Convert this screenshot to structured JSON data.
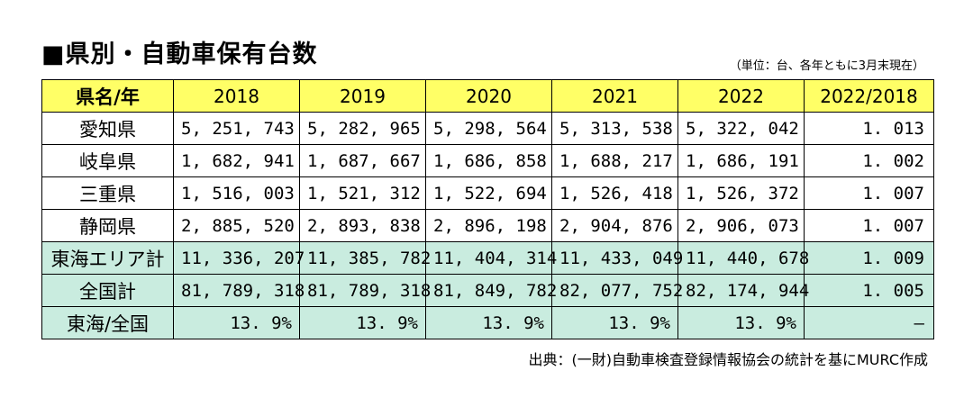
{
  "title": "■県別・自動車保有台数",
  "unit_note": "（単位：台、各年ともに3月末現在）",
  "table": {
    "columns": [
      "県名/年",
      "2018",
      "2019",
      "2020",
      "2021",
      "2022",
      "2022/2018"
    ],
    "rows": [
      {
        "name": "愛知県",
        "values": [
          "5, 251, 743",
          "5, 282, 965",
          "5, 298, 564",
          "5, 313, 538",
          "5, 322, 042"
        ],
        "ratio": "1. 013"
      },
      {
        "name": "岐阜県",
        "values": [
          "1, 682, 941",
          "1, 687, 667",
          "1, 686, 858",
          "1, 688, 217",
          "1, 686, 191"
        ],
        "ratio": "1. 002"
      },
      {
        "name": "三重県",
        "values": [
          "1, 516, 003",
          "1, 521, 312",
          "1, 522, 694",
          "1, 526, 418",
          "1, 526, 372"
        ],
        "ratio": "1. 007"
      },
      {
        "name": "静岡県",
        "values": [
          "2, 885, 520",
          "2, 893, 838",
          "2, 896, 198",
          "2, 904, 876",
          "2, 906, 073"
        ],
        "ratio": "1. 007"
      },
      {
        "name": "東海エリア計",
        "values": [
          "11, 336, 207",
          "11, 385, 782",
          "11, 404, 314",
          "11, 433, 049",
          "11, 440, 678"
        ],
        "ratio": "1. 009"
      },
      {
        "name": "全国計",
        "values": [
          "81, 789, 318",
          "81, 789, 318",
          "81, 849, 782",
          "82, 077, 752",
          "82, 174, 944"
        ],
        "ratio": "1. 005"
      },
      {
        "name": "東海/全国",
        "values": [
          "13. 9%",
          "13. 9%",
          "13. 9%",
          "13. 9%",
          "13. 9%"
        ],
        "ratio": "—"
      }
    ]
  },
  "source": "出典：(一財)自動車検査登録情報協会の統計を基にMURC作成",
  "colors": {
    "header_bg": "#ffff66",
    "total_bg": "#c9ecdf",
    "border": "#000000"
  }
}
